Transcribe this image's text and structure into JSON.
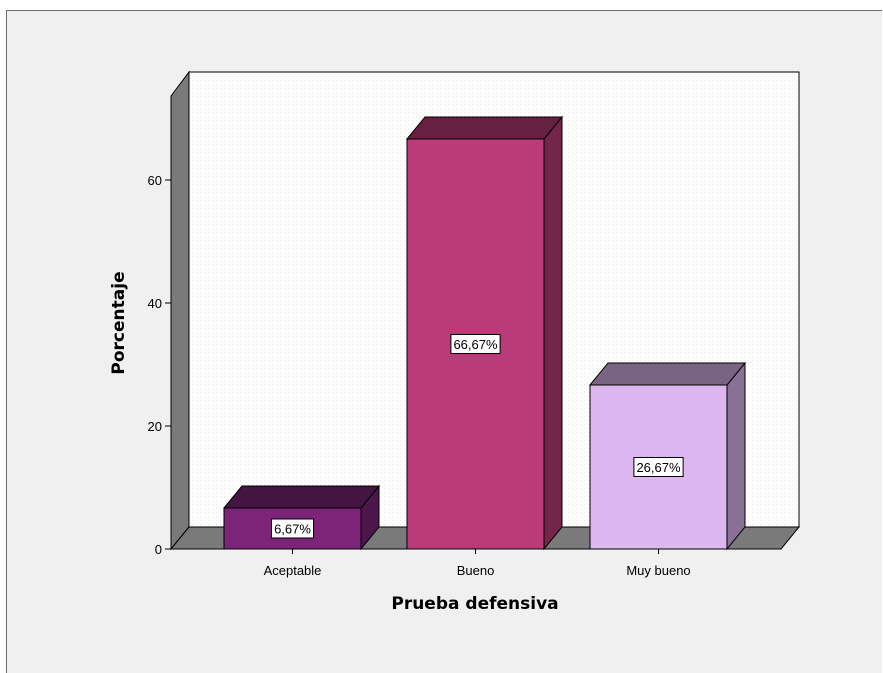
{
  "chart_data": {
    "type": "bar",
    "style": "3d",
    "categories": [
      "Aceptable",
      "Bueno",
      "Muy bueno"
    ],
    "values": [
      6.67,
      66.67,
      26.67
    ],
    "data_labels": [
      "6,67%",
      "66,67%",
      "26,67%"
    ],
    "colors": [
      "#7b2478",
      "#bb3b78",
      "#dcb6ee"
    ],
    "xlabel": "Prueba defensiva",
    "ylabel": "Porcentaje",
    "ylim": [
      0,
      70
    ],
    "yticks": [
      0,
      20,
      40,
      60
    ],
    "ytick_labels": [
      "0",
      "20",
      "40",
      "60"
    ],
    "grid": false,
    "legend": "none"
  }
}
